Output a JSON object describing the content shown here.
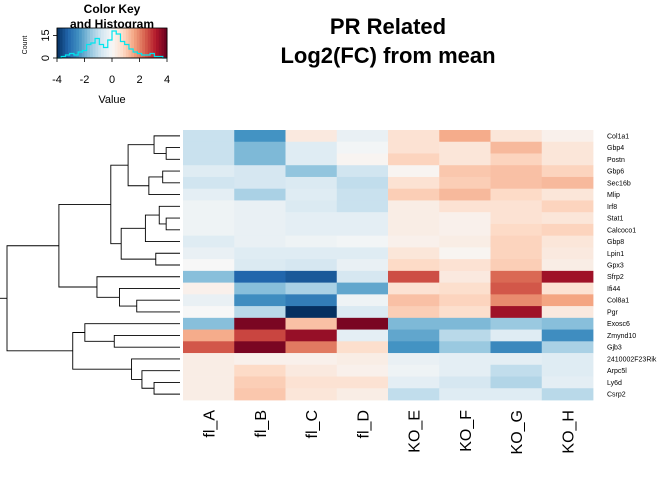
{
  "chart_data": {
    "type": "heatmap",
    "title_line1": "PR Related",
    "title_line2": "Log2(FC) from mean",
    "color_key": {
      "title_line1": "Color Key",
      "title_line2": "and Histogram",
      "xlabel": "Value",
      "ylabel": "Count",
      "x_ticks": [
        "-4",
        "-2",
        "0",
        "2",
        "4"
      ],
      "x_tick_values": [
        -4,
        -2,
        0,
        2,
        4
      ],
      "y_ticks": [
        "0",
        "15"
      ],
      "y_tick_values": [
        0,
        15
      ],
      "xlim": [
        -4,
        4
      ],
      "histogram": [
        0,
        1,
        2,
        3,
        2,
        4,
        5,
        9,
        10,
        13,
        9,
        7,
        12,
        18,
        16,
        11,
        9,
        6,
        4,
        3,
        2,
        2,
        3,
        1,
        1,
        0
      ],
      "colors_low_mid_high": [
        "#053061",
        "#f7f7f7",
        "#67001f"
      ]
    },
    "columns": [
      "fl_A",
      "fl_B",
      "fl_C",
      "fl_D",
      "KO_E",
      "KO_F",
      "KO_G",
      "KO_H"
    ],
    "rows": [
      "Col1a1",
      "Gbp4",
      "Postn",
      "Gbp6",
      "Sec16b",
      "Mlip",
      "Irf8",
      "Stat1",
      "Calcoco1",
      "Gbp8",
      "Lpin1",
      "Gpx3",
      "Sfrp2",
      "Ifi44",
      "Col8a1",
      "Pgr",
      "Exosc6",
      "Zmynd10",
      "Gjb3",
      "2410002F23Rik",
      "Arpc5l",
      "Ly6d",
      "Csrp2"
    ],
    "values": [
      [
        -0.9,
        -2.4,
        0.4,
        -0.3,
        0.6,
        1.5,
        0.5,
        0.2
      ],
      [
        -0.9,
        -1.8,
        -0.5,
        -0.1,
        0.6,
        0.5,
        1.3,
        0.5
      ],
      [
        -0.9,
        -1.8,
        -0.5,
        0.1,
        0.9,
        0.5,
        0.9,
        0.5
      ],
      [
        -0.5,
        -0.7,
        -1.6,
        -0.8,
        0.1,
        1.1,
        1.2,
        0.9
      ],
      [
        -0.8,
        -0.7,
        -0.6,
        -1.0,
        0.6,
        1.0,
        1.2,
        1.3
      ],
      [
        -0.4,
        -1.3,
        -0.5,
        -0.9,
        1.0,
        1.3,
        0.8,
        0.5
      ],
      [
        -0.2,
        -0.3,
        -0.6,
        -0.9,
        0.3,
        0.6,
        0.6,
        0.9
      ],
      [
        -0.2,
        -0.3,
        -0.4,
        -0.4,
        0.3,
        0.2,
        0.6,
        0.5
      ],
      [
        -0.2,
        -0.3,
        -0.4,
        -0.4,
        0.3,
        0.2,
        0.8,
        0.9
      ],
      [
        -0.5,
        -0.3,
        -0.2,
        -0.1,
        0.2,
        0.3,
        0.9,
        0.5
      ],
      [
        -0.3,
        -0.5,
        -0.5,
        -0.5,
        0.5,
        0.1,
        0.9,
        0.4
      ],
      [
        0.0,
        -0.6,
        -0.7,
        -0.3,
        0.8,
        0.6,
        1.0,
        0.3
      ],
      [
        -1.7,
        -3.2,
        -3.4,
        -0.7,
        2.6,
        0.4,
        2.3,
        3.4
      ],
      [
        0.2,
        -1.7,
        -1.3,
        -2.1,
        0.6,
        0.7,
        2.5,
        0.6
      ],
      [
        -0.3,
        -2.5,
        -2.8,
        -0.2,
        1.2,
        0.9,
        1.9,
        1.6
      ],
      [
        0.0,
        -1.1,
        -4.0,
        -0.6,
        1.0,
        0.7,
        3.4,
        0.4
      ],
      [
        -1.7,
        3.8,
        1.2,
        3.8,
        -1.8,
        -1.8,
        -1.5,
        -1.7
      ],
      [
        1.5,
        2.7,
        3.5,
        -0.4,
        -2.1,
        -1.1,
        -0.5,
        -2.5
      ],
      [
        2.5,
        3.8,
        2.1,
        0.7,
        -2.4,
        -1.5,
        -2.6,
        -1.3
      ],
      [
        0.3,
        0.2,
        0.2,
        0.3,
        -0.3,
        -0.4,
        -0.4,
        -0.5
      ],
      [
        0.3,
        0.8,
        0.4,
        0.2,
        -0.2,
        -0.4,
        -1.0,
        -0.5
      ],
      [
        0.3,
        1.0,
        0.6,
        0.6,
        -0.4,
        -0.7,
        -1.2,
        -0.4
      ],
      [
        0.3,
        1.1,
        0.5,
        0.3,
        -1.0,
        -0.5,
        -0.5,
        -1.1
      ]
    ]
  }
}
